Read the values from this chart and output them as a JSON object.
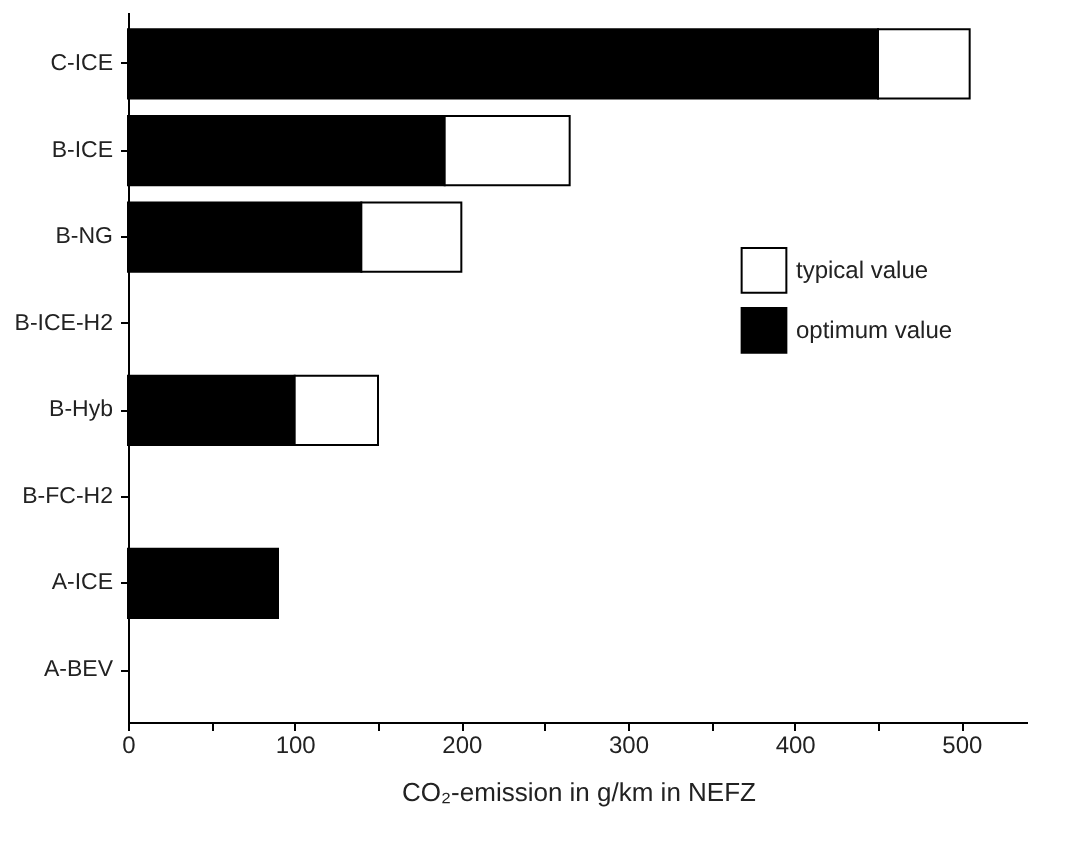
{
  "chart_data": {
    "type": "bar",
    "orientation": "horizontal",
    "stacked": true,
    "categories": [
      "C-ICE",
      "B-ICE",
      "B-NG",
      "B-ICE-H2",
      "B-Hyb",
      "B-FC-H2",
      "A-ICE",
      "A-BEV"
    ],
    "series": [
      {
        "name": "optimum value",
        "color": "#000000",
        "values": [
          450,
          190,
          140,
          null,
          100,
          null,
          90,
          null
        ]
      },
      {
        "name": "typical value",
        "color": "#ffffff",
        "values": [
          55,
          75,
          60,
          null,
          50,
          null,
          null,
          null
        ]
      }
    ],
    "xlabel": "CO₂-emission in g/km in NEFZ",
    "xlim": [
      0,
      540
    ],
    "xticks": [
      0,
      {
        "value": 50,
        "label": null
      },
      100,
      {
        "value": 150,
        "label": null
      },
      200,
      {
        "value": 250,
        "label": null
      },
      300,
      {
        "value": 350,
        "label": null
      },
      400,
      {
        "value": 450,
        "label": null
      },
      500
    ],
    "legend": "right",
    "grid": false
  }
}
